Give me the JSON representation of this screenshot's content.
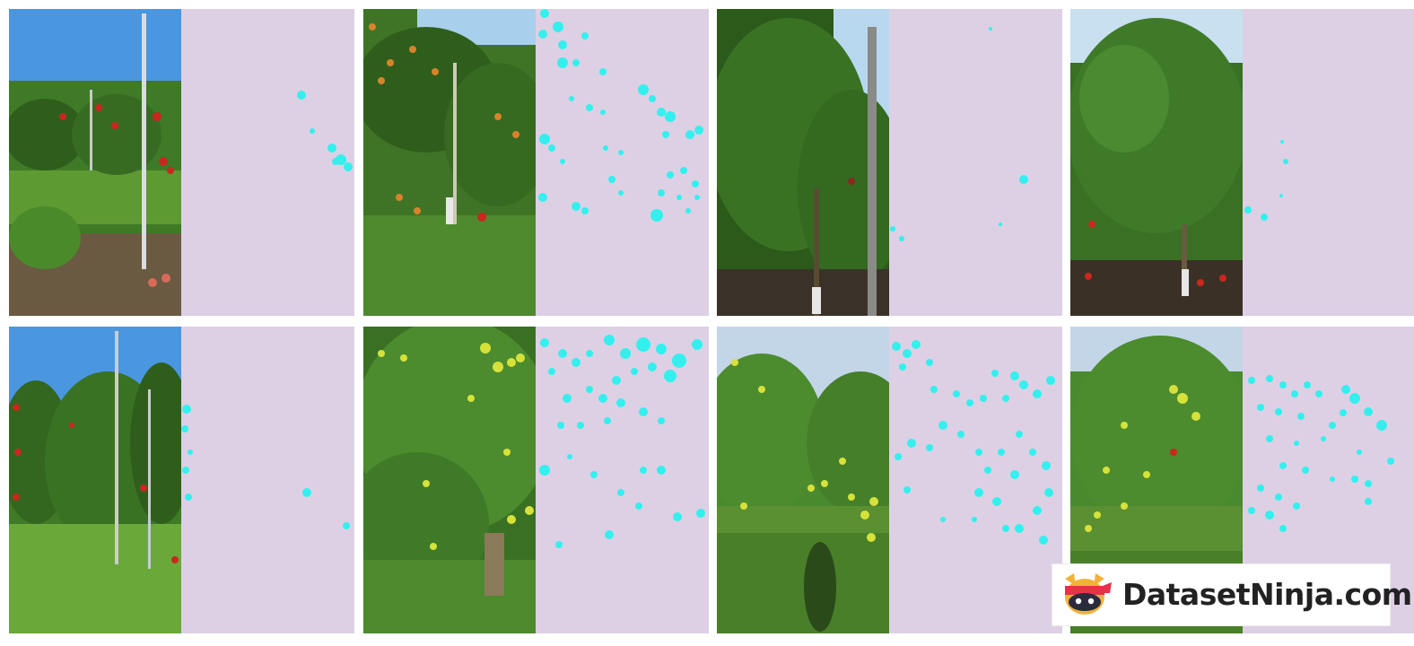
{
  "brand": {
    "text": "DatasetNinja.com",
    "logo_icon": "ninja-cat-logo-icon"
  },
  "colors": {
    "mask_background": "#ddd0e5",
    "mask_blob": "#33f0ee",
    "foliage_dark": "#2e5a1e",
    "foliage_light": "#6fa33a",
    "sky": "#5aa2e0"
  },
  "panels": [
    {
      "id": 1,
      "fruit": "red",
      "fruit_color": "#c8281e",
      "sky": true
    },
    {
      "id": 2,
      "fruit": "orange",
      "fruit_color": "#d8832a",
      "sky": true
    },
    {
      "id": 3,
      "fruit": "green",
      "fruit_color": "#3e6b20",
      "sky": true
    },
    {
      "id": 4,
      "fruit": "green",
      "fruit_color": "#3e6b20",
      "sky": true
    },
    {
      "id": 5,
      "fruit": "red",
      "fruit_color": "#c8281e",
      "sky": true
    },
    {
      "id": 6,
      "fruit": "yellow-green",
      "fruit_color": "#d6e23a",
      "sky": false
    },
    {
      "id": 7,
      "fruit": "yellow-green",
      "fruit_color": "#d6e23a",
      "sky": true
    },
    {
      "id": 8,
      "fruit": "yellow-green",
      "fruit_color": "#d6e23a",
      "sky": true
    }
  ]
}
